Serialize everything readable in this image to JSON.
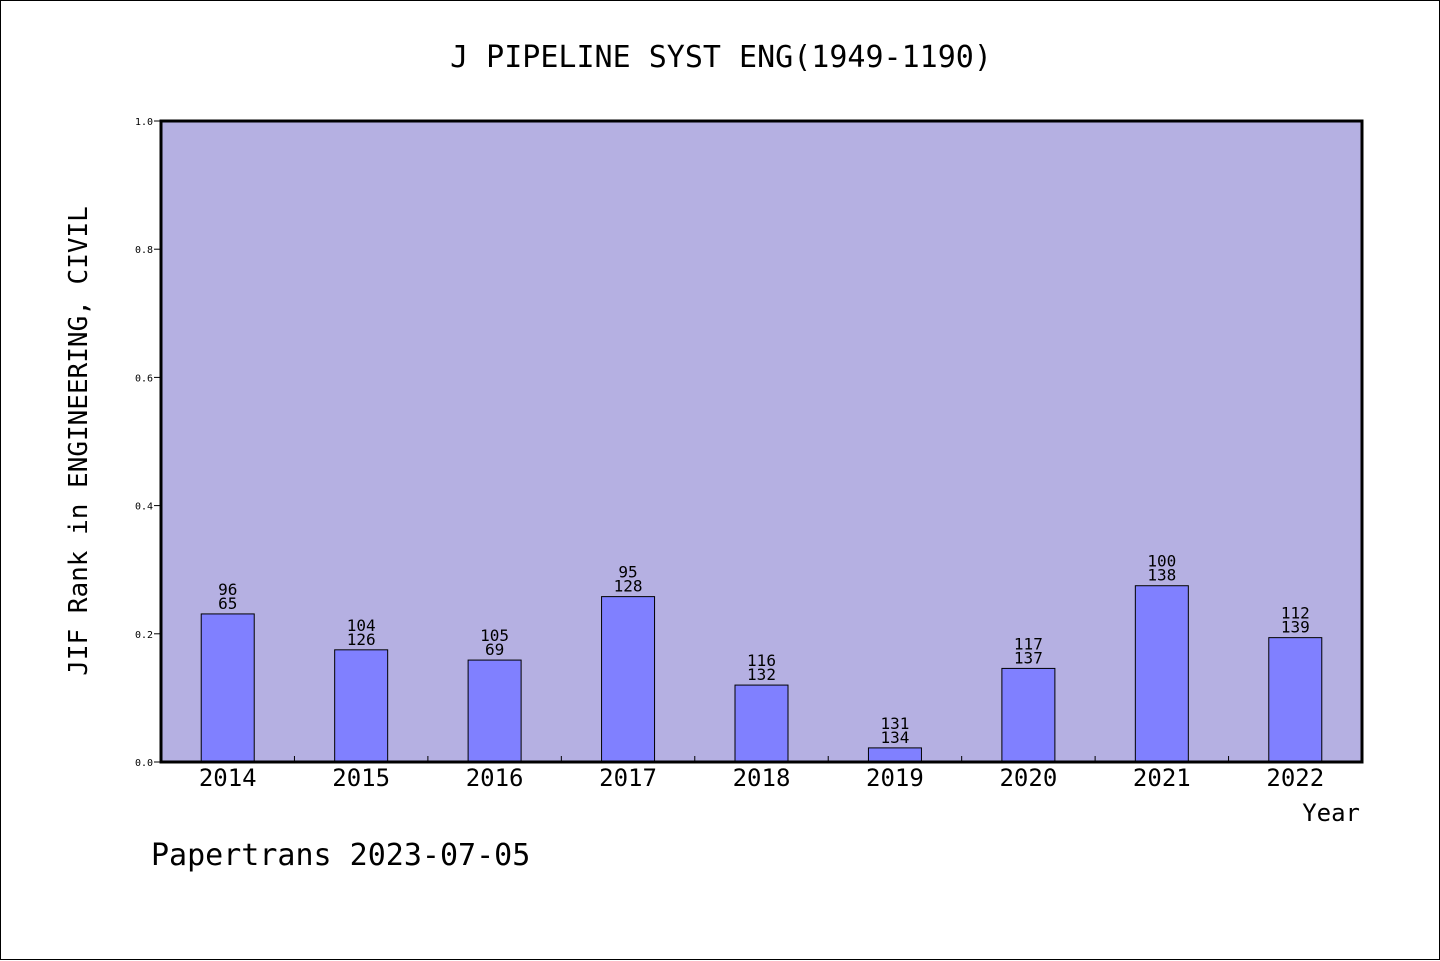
{
  "chart_data": {
    "type": "bar",
    "title": "J PIPELINE SYST ENG(1949-1190)",
    "xlabel": "Year",
    "ylabel": "JIF Rank in ENGINEERING, CIVIL",
    "ylim": [
      0,
      1.0
    ],
    "yticks": [
      "0.0",
      "0.2",
      "0.4",
      "0.6",
      "0.8",
      "1.0"
    ],
    "categories": [
      "2014",
      "2015",
      "2016",
      "2017",
      "2018",
      "2019",
      "2020",
      "2021",
      "2022"
    ],
    "values": [
      0.231,
      0.175,
      0.159,
      0.258,
      0.12,
      0.022,
      0.146,
      0.275,
      0.194
    ],
    "labels_top": [
      "96",
      "104",
      "105",
      "95",
      "116",
      "131",
      "117",
      "100",
      "112"
    ],
    "labels_bottom": [
      "65",
      "126",
      "69",
      "128",
      "132",
      "134",
      "137",
      "138",
      "139"
    ],
    "plot_background": "#b5b0e2",
    "bar_color": "#8080ff",
    "grid": false
  },
  "footer": "Papertrans 2023-07-05"
}
